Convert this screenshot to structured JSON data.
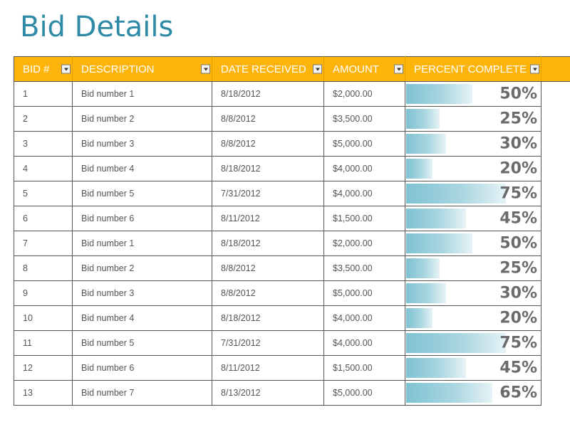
{
  "title": "Bid Details",
  "columns": [
    {
      "label": "BID #"
    },
    {
      "label": "DESCRIPTION"
    },
    {
      "label": "DATE RECEIVED"
    },
    {
      "label": "AMOUNT"
    },
    {
      "label": "PERCENT COMPLETE"
    }
  ],
  "rows": [
    {
      "bid": "1",
      "description": "Bid number 1",
      "date": "8/18/2012",
      "amount": "$2,000.00",
      "percent": "50%",
      "percent_value": 0.5
    },
    {
      "bid": "2",
      "description": "Bid number 2",
      "date": "8/8/2012",
      "amount": "$3,500.00",
      "percent": "25%",
      "percent_value": 0.25
    },
    {
      "bid": "3",
      "description": "Bid number 3",
      "date": "8/8/2012",
      "amount": "$5,000.00",
      "percent": "30%",
      "percent_value": 0.3
    },
    {
      "bid": "4",
      "description": "Bid number 4",
      "date": "8/18/2012",
      "amount": "$4,000.00",
      "percent": "20%",
      "percent_value": 0.2
    },
    {
      "bid": "5",
      "description": "Bid number 5",
      "date": "7/31/2012",
      "amount": "$4,000.00",
      "percent": "75%",
      "percent_value": 0.75
    },
    {
      "bid": "6",
      "description": "Bid number 6",
      "date": "8/11/2012",
      "amount": "$1,500.00",
      "percent": "45%",
      "percent_value": 0.45
    },
    {
      "bid": "7",
      "description": "Bid number 1",
      "date": "8/18/2012",
      "amount": "$2,000.00",
      "percent": "50%",
      "percent_value": 0.5
    },
    {
      "bid": "8",
      "description": "Bid number 2",
      "date": "8/8/2012",
      "amount": "$3,500.00",
      "percent": "25%",
      "percent_value": 0.25
    },
    {
      "bid": "9",
      "description": "Bid number 3",
      "date": "8/8/2012",
      "amount": "$5,000.00",
      "percent": "30%",
      "percent_value": 0.3
    },
    {
      "bid": "10",
      "description": "Bid number 4",
      "date": "8/18/2012",
      "amount": "$4,000.00",
      "percent": "20%",
      "percent_value": 0.2
    },
    {
      "bid": "11",
      "description": "Bid number 5",
      "date": "7/31/2012",
      "amount": "$4,000.00",
      "percent": "75%",
      "percent_value": 0.75
    },
    {
      "bid": "12",
      "description": "Bid number 6",
      "date": "8/11/2012",
      "amount": "$1,500.00",
      "percent": "45%",
      "percent_value": 0.45
    },
    {
      "bid": "13",
      "description": "Bid number 7",
      "date": "8/13/2012",
      "amount": "$5,000.00",
      "percent": "65%",
      "percent_value": 0.65
    }
  ],
  "colors": {
    "title": "#2e8aa6",
    "header_bg": "#ffb40a",
    "header_text": "#ffffff",
    "bar_start": "#7fc2d2",
    "bar_end": "#e6f3f6",
    "percent_text": "#6b6b6b"
  },
  "icons": {
    "filter": "filter-dropdown-icon"
  }
}
